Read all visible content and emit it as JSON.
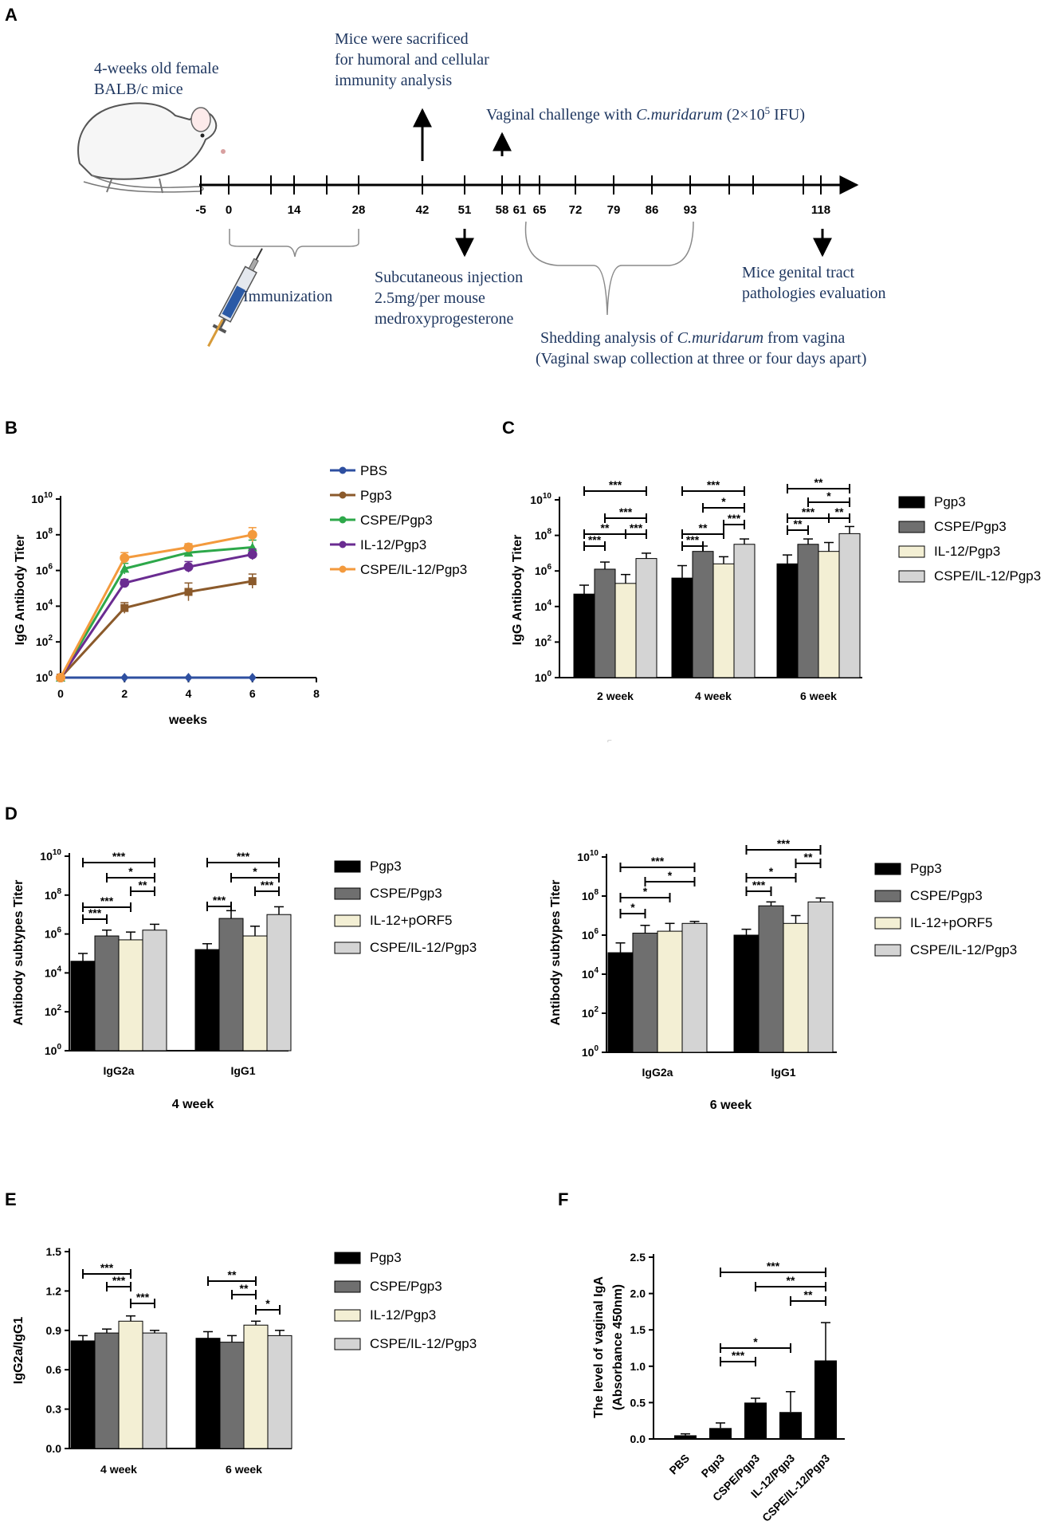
{
  "panels": {
    "A": "A",
    "B": "B",
    "C": "C",
    "D": "D",
    "E": "E",
    "F": "F"
  },
  "timeline": {
    "mouse_label_1": "4-weeks old female",
    "mouse_label_2": "BALB/c mice",
    "sacrifice_1": "Mice were sacrificed",
    "sacrifice_2": "for humoral and cellular",
    "sacrifice_3": "immunity analysis",
    "challenge_pre": "Vaginal challenge with ",
    "challenge_species": "C.muridarum",
    "challenge_post": " (2×10",
    "challenge_exp": "5",
    "challenge_end": " IFU)",
    "ticks": [
      "-5",
      "0",
      "14",
      "28",
      "42",
      "51",
      "58",
      "61",
      "65",
      "72",
      "79",
      "86",
      "93",
      "118"
    ],
    "immunization": "Immunization",
    "inj_1": "Subcutaneous injection",
    "inj_2": "2.5mg/per mouse",
    "inj_3": "medroxyprogesterone",
    "path_1": "Mice genital tract",
    "path_2": "pathologies evaluation",
    "shed_pre": "Shedding analysis of ",
    "shed_species": "C.muridarum",
    "shed_post": " from vagina",
    "shed_2": "(Vaginal swap collection at three or four days apart)"
  },
  "colors": {
    "pbs": "#2e4fa0",
    "pgp3": "#8b5a2b",
    "cspe": "#2da84a",
    "il12": "#6a2c91",
    "cspeil12": "#f39a3d",
    "black": "#000000",
    "dgray": "#6f6f6f",
    "cream": "#f3efd4",
    "lgray": "#d4d4d4"
  },
  "chart_data": [
    {
      "id": "B",
      "type": "line",
      "ylabel": "IgG Antibody Titer",
      "xlabel": "weeks",
      "x": [
        0,
        2,
        4,
        6
      ],
      "xticks": [
        "0",
        "2",
        "4",
        "6",
        "8"
      ],
      "xlim": [
        0,
        8
      ],
      "yscale": "log10",
      "ylim_exp": [
        0,
        10
      ],
      "yticks": [
        "10",
        "10",
        "10",
        "10",
        "10",
        "10"
      ],
      "ytick_exp": [
        "0",
        "2",
        "4",
        "6",
        "8",
        "10"
      ],
      "series": [
        {
          "name": "PBS",
          "color": "#2e4fa0",
          "marker": "diamond",
          "log_values": [
            0,
            0,
            0,
            0
          ],
          "log_err": [
            0,
            0,
            0,
            0
          ]
        },
        {
          "name": "Pgp3",
          "color": "#8b5a2b",
          "marker": "square",
          "log_values": [
            0,
            3.9,
            4.8,
            5.4
          ],
          "log_err": [
            0,
            0.3,
            0.5,
            0.4
          ]
        },
        {
          "name": "CSPE/Pgp3",
          "color": "#2da84a",
          "marker": "triangle",
          "log_values": [
            0,
            6.1,
            7.0,
            7.3
          ],
          "log_err": [
            0,
            0.3,
            0.2,
            0.4
          ]
        },
        {
          "name": "IL-12/Pgp3",
          "color": "#6a2c91",
          "marker": "circle",
          "log_values": [
            0,
            5.3,
            6.2,
            6.9
          ],
          "log_err": [
            0,
            0.2,
            0.3,
            0.3
          ]
        },
        {
          "name": "CSPE/IL-12/Pgp3",
          "color": "#f39a3d",
          "marker": "circle",
          "log_values": [
            0,
            6.7,
            7.3,
            8.0
          ],
          "log_err": [
            0,
            0.3,
            0.2,
            0.4
          ]
        }
      ]
    },
    {
      "id": "C",
      "type": "bar",
      "ylabel": "IgG Antibody Titer",
      "yscale": "log10",
      "ylim_exp": [
        0,
        10
      ],
      "yticks": [
        "10",
        "10",
        "10",
        "10",
        "10",
        "10"
      ],
      "ytick_exp": [
        "0",
        "2",
        "4",
        "6",
        "8",
        "10"
      ],
      "categories": [
        "2 week",
        "4 week",
        "6 week"
      ],
      "series": [
        {
          "name": "Pgp3",
          "color": "#000000",
          "log_values": [
            4.7,
            5.6,
            6.4
          ],
          "log_err": [
            0.5,
            0.7,
            0.5
          ]
        },
        {
          "name": "CSPE/Pgp3",
          "color": "#6f6f6f",
          "log_values": [
            6.1,
            7.1,
            7.5
          ],
          "log_err": [
            0.4,
            0.3,
            0.3
          ]
        },
        {
          "name": "IL-12/Pgp3",
          "color": "#f3efd4",
          "log_values": [
            5.3,
            6.4,
            7.1
          ],
          "log_err": [
            0.5,
            0.4,
            0.5
          ]
        },
        {
          "name": "CSPE/IL-12/Pgp3",
          "color": "#d4d4d4",
          "log_values": [
            6.7,
            7.5,
            8.1
          ],
          "log_err": [
            0.3,
            0.3,
            0.4
          ]
        }
      ],
      "sig": [
        "***",
        "***",
        "**",
        "***",
        "***",
        "***",
        "**",
        "*",
        "***",
        "***",
        "**",
        "*",
        "***",
        "**",
        "**",
        "***"
      ]
    },
    {
      "id": "D1",
      "type": "bar",
      "caption": "4 week",
      "ylabel": "Antibody subtypes Titer",
      "yscale": "log10",
      "ylim_exp": [
        0,
        10
      ],
      "yticks": [
        "10",
        "10",
        "10",
        "10",
        "10",
        "10"
      ],
      "ytick_exp": [
        "0",
        "2",
        "4",
        "6",
        "8",
        "10"
      ],
      "categories": [
        "IgG2a",
        "IgG1"
      ],
      "series": [
        {
          "name": "Pgp3",
          "color": "#000000",
          "log_values": [
            4.6,
            5.2
          ],
          "log_err": [
            0.4,
            0.3
          ]
        },
        {
          "name": "CSPE/Pgp3",
          "color": "#6f6f6f",
          "log_values": [
            5.9,
            6.8
          ],
          "log_err": [
            0.3,
            0.4
          ]
        },
        {
          "name": "IL-12+pORF5",
          "color": "#f3efd4",
          "log_values": [
            5.7,
            5.9
          ],
          "log_err": [
            0.4,
            0.5
          ]
        },
        {
          "name": "CSPE/IL-12/Pgp3",
          "color": "#d4d4d4",
          "log_values": [
            6.2,
            7.0
          ],
          "log_err": [
            0.3,
            0.4
          ]
        }
      ],
      "sig": [
        "***",
        "*",
        "**",
        "***",
        "***",
        "***",
        "*",
        "***",
        "***"
      ]
    },
    {
      "id": "D2",
      "type": "bar",
      "caption": "6 week",
      "ylabel": "Antibody subtypes Titer",
      "yscale": "log10",
      "ylim_exp": [
        0,
        10
      ],
      "yticks": [
        "10",
        "10",
        "10",
        "10",
        "10",
        "10"
      ],
      "ytick_exp": [
        "0",
        "2",
        "4",
        "6",
        "8",
        "10"
      ],
      "categories": [
        "IgG2a",
        "IgG1"
      ],
      "series": [
        {
          "name": "Pgp3",
          "color": "#000000",
          "log_values": [
            5.1,
            6.0
          ],
          "log_err": [
            0.5,
            0.3
          ]
        },
        {
          "name": "CSPE/Pgp3",
          "color": "#6f6f6f",
          "log_values": [
            6.1,
            7.5
          ],
          "log_err": [
            0.4,
            0.2
          ]
        },
        {
          "name": "IL-12+pORF5",
          "color": "#f3efd4",
          "log_values": [
            6.2,
            6.6
          ],
          "log_err": [
            0.4,
            0.4
          ]
        },
        {
          "name": "CSPE/IL-12/Pgp3",
          "color": "#d4d4d4",
          "log_values": [
            6.6,
            7.7
          ],
          "log_err": [
            0.1,
            0.2
          ]
        }
      ],
      "sig": [
        "***",
        "*",
        "*",
        "*",
        "***",
        "*",
        "***",
        "**"
      ]
    },
    {
      "id": "E",
      "type": "bar",
      "ylabel": "IgG2a/IgG1",
      "ylim": [
        0,
        1.5
      ],
      "yticks": [
        "0.0",
        "0.3",
        "0.6",
        "0.9",
        "1.2",
        "1.5"
      ],
      "categories": [
        "4 week",
        "6 week"
      ],
      "series": [
        {
          "name": "Pgp3",
          "color": "#000000",
          "values": [
            0.82,
            0.84
          ],
          "err": [
            0.04,
            0.05
          ]
        },
        {
          "name": "CSPE/Pgp3",
          "color": "#6f6f6f",
          "values": [
            0.88,
            0.81
          ],
          "err": [
            0.03,
            0.05
          ]
        },
        {
          "name": "IL-12/Pgp3",
          "color": "#f3efd4",
          "values": [
            0.97,
            0.94
          ],
          "err": [
            0.04,
            0.03
          ]
        },
        {
          "name": "CSPE/IL-12/Pgp3",
          "color": "#d4d4d4",
          "values": [
            0.88,
            0.86
          ],
          "err": [
            0.02,
            0.04
          ]
        }
      ],
      "sig": [
        "***",
        "***",
        "***",
        "**",
        "**",
        "*"
      ]
    },
    {
      "id": "F",
      "type": "bar",
      "ylabel_1": "The level of vaginal IgA",
      "ylabel_2": "(Absorbance 450nm)",
      "ylim": [
        0,
        2.5
      ],
      "yticks": [
        "0.0",
        "0.5",
        "1.0",
        "1.5",
        "2.0",
        "2.5"
      ],
      "categories": [
        "PBS",
        "Pgp3",
        "CSPE/Pgp3",
        "IL-12/Pgp3",
        "CSPE/IL-12/Pgp3"
      ],
      "values": [
        0.05,
        0.15,
        0.5,
        0.37,
        1.08
      ],
      "err": [
        0.02,
        0.07,
        0.06,
        0.28,
        0.52
      ],
      "color": "#000000",
      "sig": [
        "***",
        "**",
        "**",
        "*",
        "***"
      ]
    }
  ]
}
